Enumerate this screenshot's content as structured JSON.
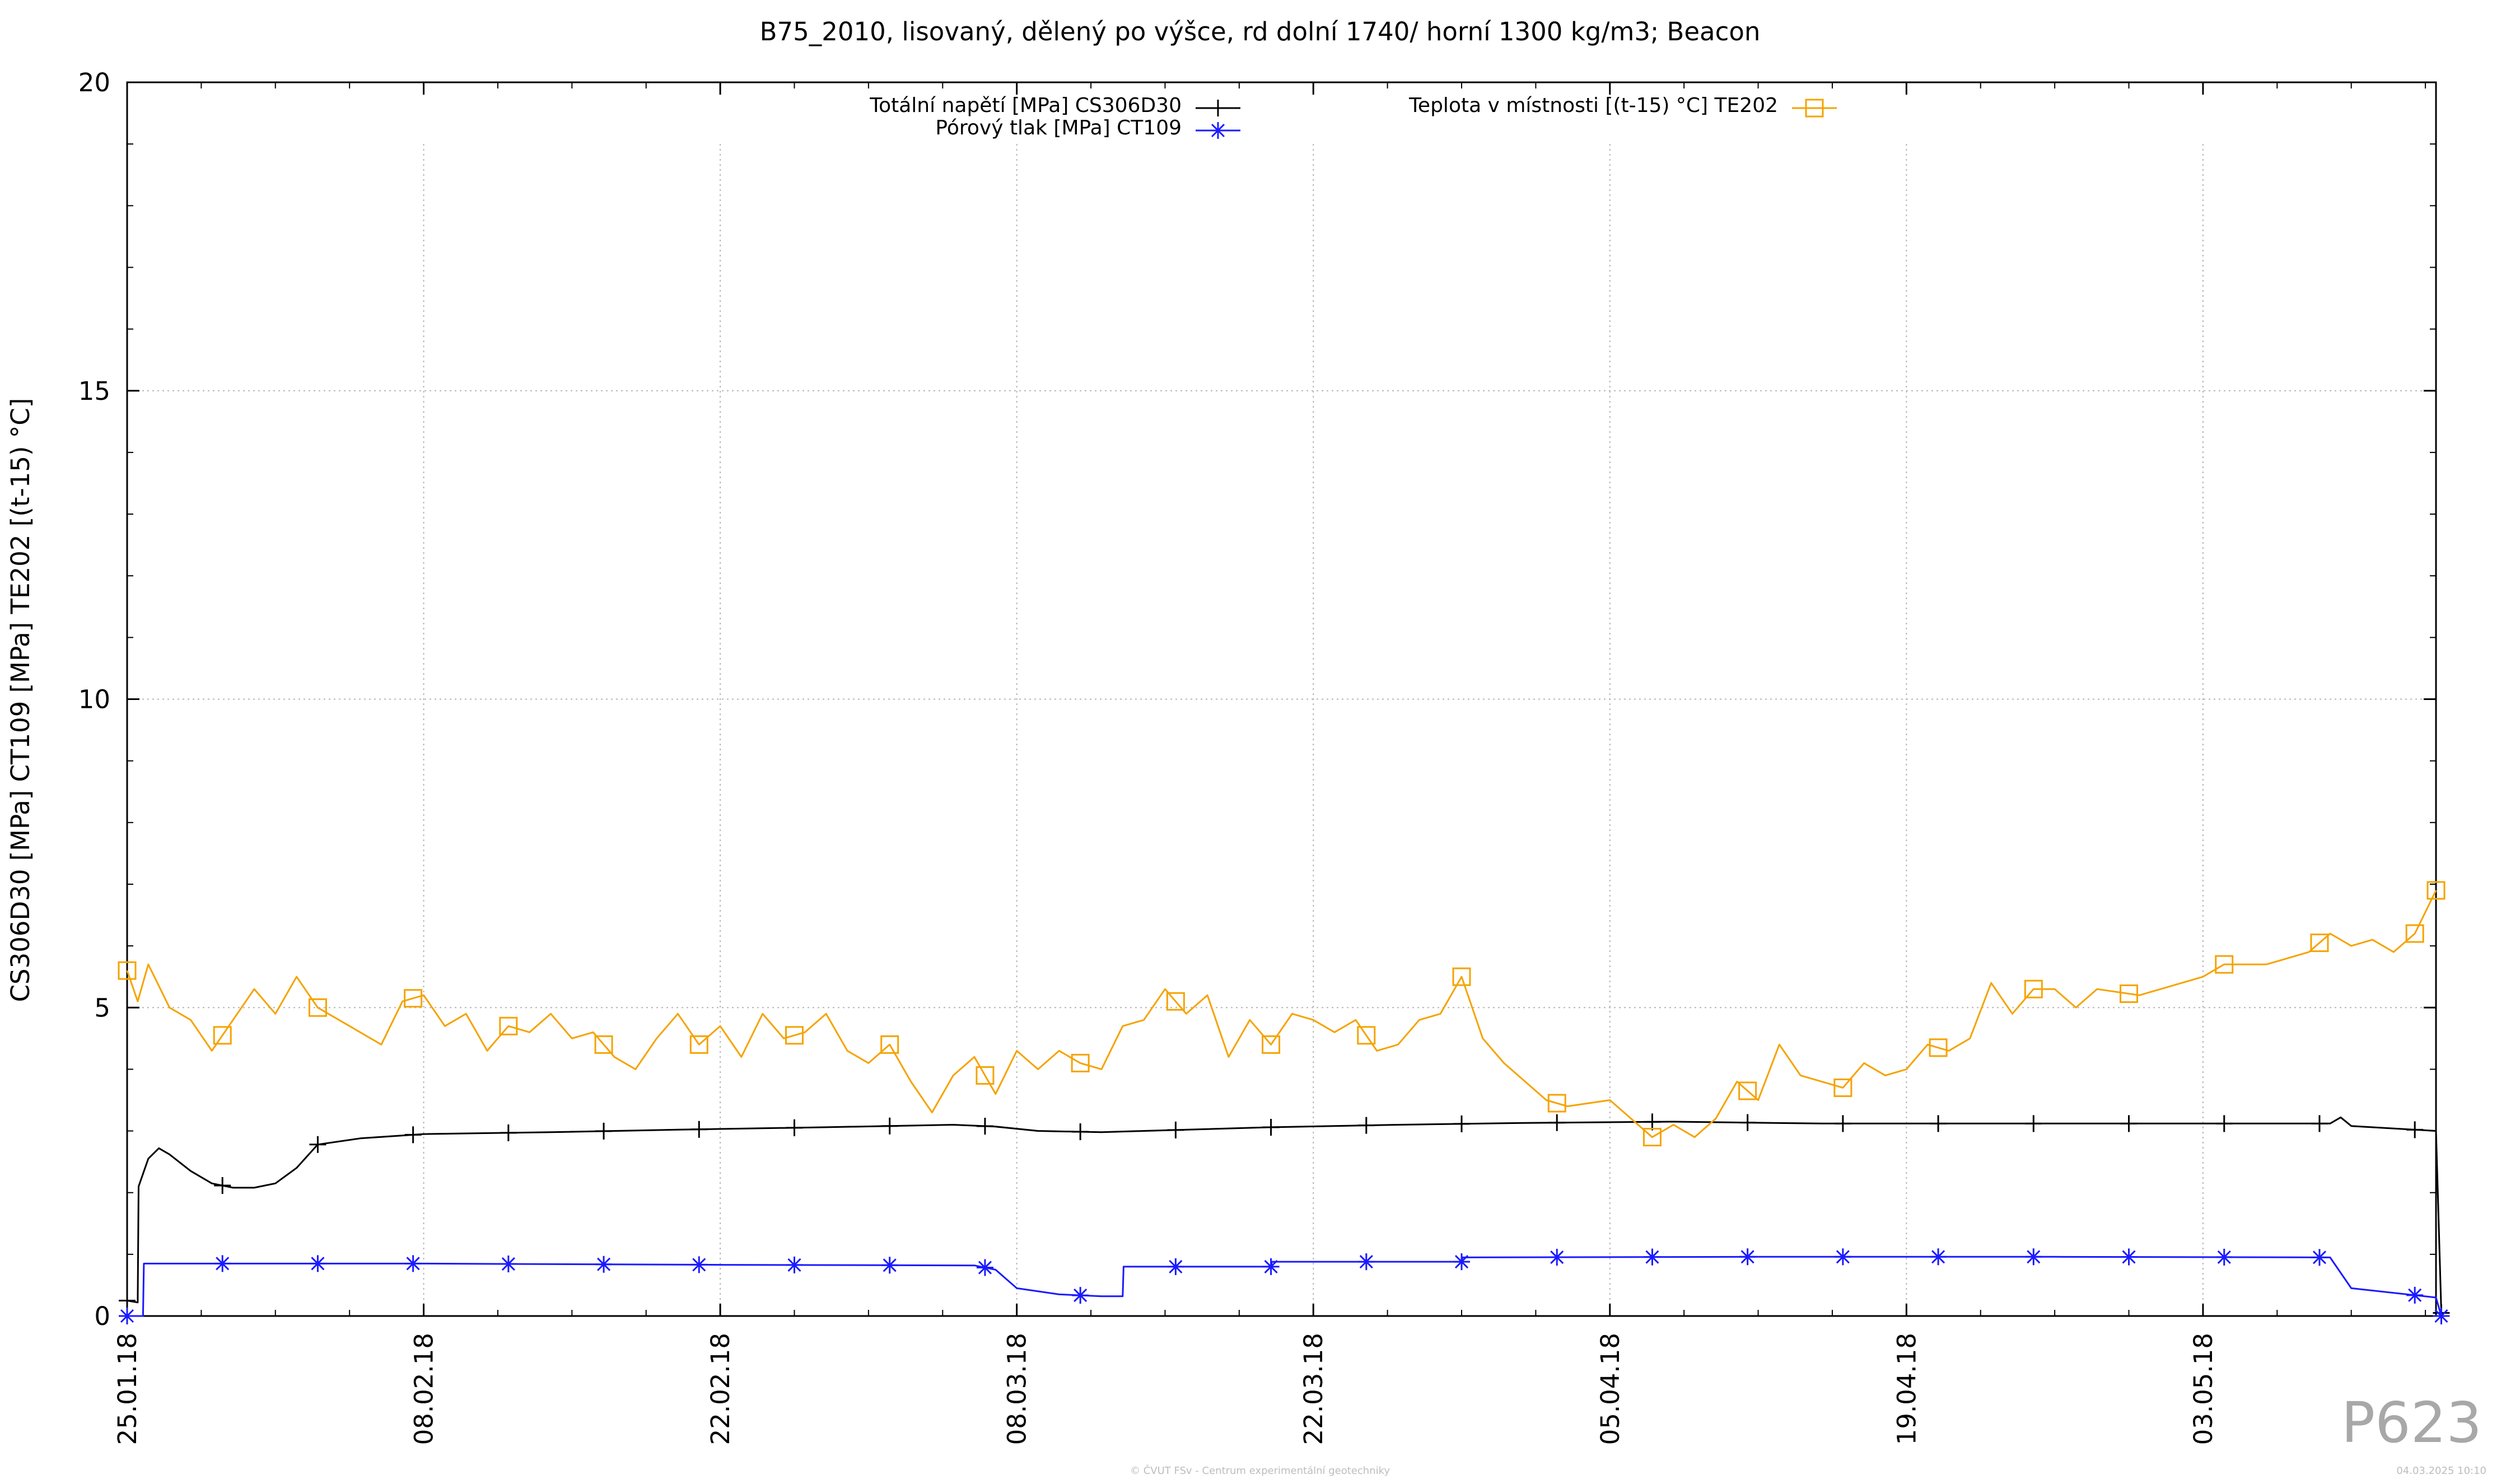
{
  "chart_data": {
    "type": "line",
    "title": "B75_2010, lisovaný, dělený po výšce, rd dolní 1740/ horní 1300 kg/m3; Beacon",
    "ylabel": "CS306D30 [MPa] CT109 [MPa] TE202 [(t-15) °C]",
    "xlabel": "",
    "ylim": [
      0,
      20
    ],
    "xlim": [
      "2018-01-25",
      "2018-05-14"
    ],
    "y_ticks": [
      "0",
      "5",
      "10",
      "15",
      "20"
    ],
    "x_ticks": [
      {
        "date": "2018-01-25",
        "label": "25.01.18"
      },
      {
        "date": "2018-02-08",
        "label": "08.02.18"
      },
      {
        "date": "2018-02-22",
        "label": "22.02.18"
      },
      {
        "date": "2018-03-08",
        "label": "08.03.18"
      },
      {
        "date": "2018-03-22",
        "label": "22.03.18"
      },
      {
        "date": "2018-04-05",
        "label": "05.04.18"
      },
      {
        "date": "2018-04-19",
        "label": "19.04.18"
      },
      {
        "date": "2018-05-03",
        "label": "03.05.18"
      }
    ],
    "grid": true,
    "legend": "top",
    "series": [
      {
        "name": "Totální napětí [MPa] CS306D30",
        "color": "#000000",
        "marker": "plus",
        "points": [
          [
            "2018-01-25",
            0.25
          ],
          [
            "2018-01-25T12:00",
            0.22
          ],
          [
            "2018-01-25T13:00",
            2.1
          ],
          [
            "2018-01-26",
            2.55
          ],
          [
            "2018-01-26T12:00",
            2.72
          ],
          [
            "2018-01-27",
            2.62
          ],
          [
            "2018-01-28",
            2.35
          ],
          [
            "2018-01-29",
            2.15
          ],
          [
            "2018-01-30",
            2.08
          ],
          [
            "2018-01-31",
            2.08
          ],
          [
            "2018-02-01",
            2.15
          ],
          [
            "2018-02-02",
            2.4
          ],
          [
            "2018-02-03",
            2.78
          ],
          [
            "2018-02-05",
            2.88
          ],
          [
            "2018-02-08",
            2.95
          ],
          [
            "2018-02-14",
            2.98
          ],
          [
            "2018-02-20",
            3.02
          ],
          [
            "2018-02-27",
            3.06
          ],
          [
            "2018-03-05",
            3.1
          ],
          [
            "2018-03-07",
            3.07
          ],
          [
            "2018-03-09",
            3.0
          ],
          [
            "2018-03-12",
            2.98
          ],
          [
            "2018-03-14",
            3.0
          ],
          [
            "2018-03-20",
            3.06
          ],
          [
            "2018-03-26",
            3.1
          ],
          [
            "2018-04-01",
            3.13
          ],
          [
            "2018-04-08",
            3.15
          ],
          [
            "2018-04-15",
            3.12
          ],
          [
            "2018-04-22",
            3.12
          ],
          [
            "2018-04-29",
            3.12
          ],
          [
            "2018-05-04",
            3.12
          ],
          [
            "2018-05-09",
            3.12
          ],
          [
            "2018-05-09T12:00",
            3.22
          ],
          [
            "2018-05-10",
            3.08
          ],
          [
            "2018-05-14",
            3.0
          ],
          [
            "2018-05-14T06:00",
            0.05
          ]
        ]
      },
      {
        "name": "Pórový tlak [MPa] CT109",
        "color": "#1a1aff",
        "marker": "star",
        "points": [
          [
            "2018-01-25",
            0.0
          ],
          [
            "2018-01-25T18:00",
            0.0
          ],
          [
            "2018-01-25T19:00",
            0.85
          ],
          [
            "2018-02-08",
            0.85
          ],
          [
            "2018-02-22",
            0.83
          ],
          [
            "2018-03-06",
            0.82
          ],
          [
            "2018-03-07",
            0.75
          ],
          [
            "2018-03-08",
            0.45
          ],
          [
            "2018-03-10",
            0.35
          ],
          [
            "2018-03-12",
            0.32
          ],
          [
            "2018-03-13",
            0.32
          ],
          [
            "2018-03-13T01:00",
            0.8
          ],
          [
            "2018-03-20",
            0.8
          ],
          [
            "2018-03-20T01:00",
            0.88
          ],
          [
            "2018-03-29",
            0.88
          ],
          [
            "2018-03-29T01:00",
            0.95
          ],
          [
            "2018-04-12",
            0.96
          ],
          [
            "2018-04-26",
            0.96
          ],
          [
            "2018-05-09",
            0.95
          ],
          [
            "2018-05-10",
            0.45
          ],
          [
            "2018-05-14",
            0.3
          ],
          [
            "2018-05-14T06:00",
            0.0
          ]
        ]
      },
      {
        "name": "Teplota v místnosti [(t-15) °C] TE202",
        "color": "#f5a300",
        "marker": "square",
        "points": [
          [
            "2018-01-25",
            5.6
          ],
          [
            "2018-01-25T12:00",
            5.1
          ],
          [
            "2018-01-26",
            5.7
          ],
          [
            "2018-01-27",
            5.0
          ],
          [
            "2018-01-28",
            4.8
          ],
          [
            "2018-01-29",
            4.3
          ],
          [
            "2018-01-30",
            4.8
          ],
          [
            "2018-01-31",
            5.3
          ],
          [
            "2018-02-01",
            4.9
          ],
          [
            "2018-02-02",
            5.5
          ],
          [
            "2018-02-03",
            5.0
          ],
          [
            "2018-02-04",
            4.8
          ],
          [
            "2018-02-06",
            4.4
          ],
          [
            "2018-02-07",
            5.1
          ],
          [
            "2018-02-08",
            5.2
          ],
          [
            "2018-02-09",
            4.7
          ],
          [
            "2018-02-10",
            4.9
          ],
          [
            "2018-02-11",
            4.3
          ],
          [
            "2018-02-12",
            4.7
          ],
          [
            "2018-02-13",
            4.6
          ],
          [
            "2018-02-14",
            4.9
          ],
          [
            "2018-02-15",
            4.5
          ],
          [
            "2018-02-16",
            4.6
          ],
          [
            "2018-02-17",
            4.2
          ],
          [
            "2018-02-18",
            4.0
          ],
          [
            "2018-02-19",
            4.5
          ],
          [
            "2018-02-20",
            4.9
          ],
          [
            "2018-02-21",
            4.4
          ],
          [
            "2018-02-22",
            4.7
          ],
          [
            "2018-02-23",
            4.2
          ],
          [
            "2018-02-24",
            4.9
          ],
          [
            "2018-02-25",
            4.5
          ],
          [
            "2018-02-26",
            4.6
          ],
          [
            "2018-02-27",
            4.9
          ],
          [
            "2018-02-28",
            4.3
          ],
          [
            "2018-03-01",
            4.1
          ],
          [
            "2018-03-02",
            4.4
          ],
          [
            "2018-03-03",
            3.8
          ],
          [
            "2018-03-04",
            3.3
          ],
          [
            "2018-03-05",
            3.9
          ],
          [
            "2018-03-06",
            4.2
          ],
          [
            "2018-03-07",
            3.6
          ],
          [
            "2018-03-08",
            4.3
          ],
          [
            "2018-03-09",
            4.0
          ],
          [
            "2018-03-10",
            4.3
          ],
          [
            "2018-03-11",
            4.1
          ],
          [
            "2018-03-12",
            4.0
          ],
          [
            "2018-03-13",
            4.7
          ],
          [
            "2018-03-14",
            4.8
          ],
          [
            "2018-03-15",
            5.3
          ],
          [
            "2018-03-16",
            4.9
          ],
          [
            "2018-03-17",
            5.2
          ],
          [
            "2018-03-18",
            4.2
          ],
          [
            "2018-03-19",
            4.8
          ],
          [
            "2018-03-20",
            4.4
          ],
          [
            "2018-03-21",
            4.9
          ],
          [
            "2018-03-22",
            4.8
          ],
          [
            "2018-03-23",
            4.6
          ],
          [
            "2018-03-24",
            4.8
          ],
          [
            "2018-03-25",
            4.3
          ],
          [
            "2018-03-26",
            4.4
          ],
          [
            "2018-03-27",
            4.8
          ],
          [
            "2018-03-28",
            4.9
          ],
          [
            "2018-03-29",
            5.5
          ],
          [
            "2018-03-30",
            4.5
          ],
          [
            "2018-03-31",
            4.1
          ],
          [
            "2018-04-01",
            3.8
          ],
          [
            "2018-04-02",
            3.5
          ],
          [
            "2018-04-03",
            3.4
          ],
          [
            "2018-04-05",
            3.5
          ],
          [
            "2018-04-06",
            3.2
          ],
          [
            "2018-04-07",
            2.9
          ],
          [
            "2018-04-08",
            3.1
          ],
          [
            "2018-04-09",
            2.9
          ],
          [
            "2018-04-10",
            3.2
          ],
          [
            "2018-04-11",
            3.8
          ],
          [
            "2018-04-12",
            3.5
          ],
          [
            "2018-04-13",
            4.4
          ],
          [
            "2018-04-14",
            3.9
          ],
          [
            "2018-04-15",
            3.8
          ],
          [
            "2018-04-16",
            3.7
          ],
          [
            "2018-04-17",
            4.1
          ],
          [
            "2018-04-18",
            3.9
          ],
          [
            "2018-04-19",
            4.0
          ],
          [
            "2018-04-20",
            4.4
          ],
          [
            "2018-04-21",
            4.3
          ],
          [
            "2018-04-22",
            4.5
          ],
          [
            "2018-04-23",
            5.4
          ],
          [
            "2018-04-24",
            4.9
          ],
          [
            "2018-04-25",
            5.3
          ],
          [
            "2018-04-26",
            5.3
          ],
          [
            "2018-04-27",
            5.0
          ],
          [
            "2018-04-28",
            5.3
          ],
          [
            "2018-04-30",
            5.2
          ],
          [
            "2018-05-01",
            5.3
          ],
          [
            "2018-05-02",
            5.4
          ],
          [
            "2018-05-03",
            5.5
          ],
          [
            "2018-05-04",
            5.7
          ],
          [
            "2018-05-06",
            5.7
          ],
          [
            "2018-05-07",
            5.8
          ],
          [
            "2018-05-08",
            5.9
          ],
          [
            "2018-05-09",
            6.2
          ],
          [
            "2018-05-10",
            6.0
          ],
          [
            "2018-05-11",
            6.1
          ],
          [
            "2018-05-12",
            5.9
          ],
          [
            "2018-05-13",
            6.2
          ],
          [
            "2018-05-14",
            6.9
          ]
        ]
      }
    ]
  },
  "watermark": "P623",
  "footer": {
    "credit": "© ČVUT FSv - Centrum experimentální geotechniky",
    "timestamp": "04.03.2025 10:10"
  }
}
